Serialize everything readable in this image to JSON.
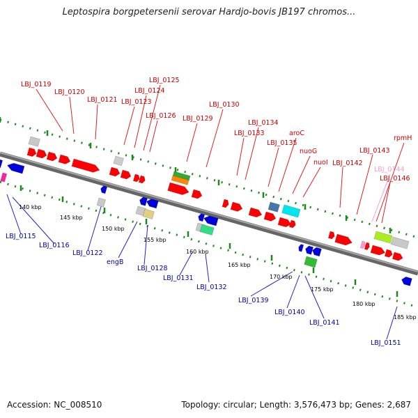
{
  "title": "Leptospira borgpetersenii serovar Hardjo-bovis JB197 chromos...",
  "footer": {
    "accession": "Accession: NC_008510",
    "summary": "Topology: circular; Length: 3,576,473 bp; Genes: 2,687"
  },
  "colors": {
    "forward_label": "#cc0000",
    "reverse_label": "#0000aa",
    "pink_label": "#ff99cc",
    "backbone": "#888888",
    "tick": "#1a8a1a"
  },
  "scale_labels": [
    "140 kbp",
    "145 kbp",
    "150 kbp",
    "155 kbp",
    "160 kbp",
    "165 kbp",
    "170 kbp",
    "175 kbp",
    "180 kbp",
    "185 kbp"
  ],
  "top_labels": [
    {
      "text": "LBJ_0119"
    },
    {
      "text": "LBJ_0120"
    },
    {
      "text": "LBJ_0121"
    },
    {
      "text": "LBJ_0123"
    },
    {
      "text": "LBJ_0124"
    },
    {
      "text": "LBJ_0125"
    },
    {
      "text": "LBJ_0126"
    },
    {
      "text": "LBJ_0129"
    },
    {
      "text": "LBJ_0130"
    },
    {
      "text": "LBJ_0133"
    },
    {
      "text": "LBJ_0134"
    },
    {
      "text": "LBJ_0135"
    },
    {
      "text": "aroC"
    },
    {
      "text": "nuoG"
    },
    {
      "text": "nuoI"
    },
    {
      "text": "LBJ_0142"
    },
    {
      "text": "LBJ_0143"
    },
    {
      "text": "rpmH"
    },
    {
      "text": "LBJ_0144"
    },
    {
      "text": "LBJ_0146"
    }
  ],
  "bottom_labels": [
    {
      "text": "LBJ_0115"
    },
    {
      "text": "LBJ_0116"
    },
    {
      "text": "LBJ_0122"
    },
    {
      "text": "engB"
    },
    {
      "text": "LBJ_0128"
    },
    {
      "text": "LBJ_0131"
    },
    {
      "text": "LBJ_0132"
    },
    {
      "text": "LBJ_0139"
    },
    {
      "text": "LBJ_0140"
    },
    {
      "text": "LBJ_0141"
    },
    {
      "text": "LBJ_0151"
    }
  ]
}
